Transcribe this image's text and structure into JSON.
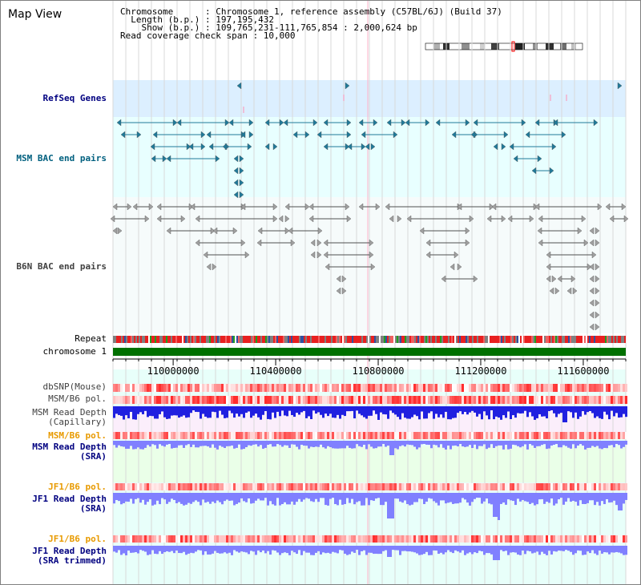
{
  "header": {
    "title": "Map View",
    "info_lines": [
      "Chromosome      : Chromosome 1, reference assembly (C57BL/6J) (Build 37)",
      "  Length (b.p.) : 197,195,432",
      "    Show (b.p.) : 109,765,231-111,765,854 : 2,000,624 bp",
      "Read coverage check span : 10,000"
    ]
  },
  "tracks": {
    "refseq": "RefSeq Genes",
    "msm_bac": "MSM BAC end pairs",
    "b6n_bac": "B6N BAC end pairs",
    "repeat": "Repeat",
    "chromosome": "chromosome 1",
    "dbsnp": "dbSNP(Mouse)",
    "msm_b6_pol": "MSM/B6 pol.",
    "msm_depth_cap_1": "MSM Read Depth",
    "msm_depth_cap_2": "(Capillary)",
    "msm_b6_pol_2": "MSM/B6 pol.",
    "msm_depth_sra_1": "MSM Read Depth",
    "msm_depth_sra_2": "(SRA)",
    "jf1_b6_pol": "JF1/B6 pol.",
    "jf1_depth_sra_1": "JF1 Read Depth",
    "jf1_depth_sra_2": "(SRA)",
    "jf1_b6_pol_2": "JF1/B6 pol.",
    "jf1_depth_trim_1": "JF1 Read Depth",
    "jf1_depth_trim_2": "(SRA trimmed)"
  },
  "ruler": {
    "ticks": [
      {
        "label": "110000000",
        "pos": 110000000
      },
      {
        "label": "110400000",
        "pos": 110400000
      },
      {
        "label": "110800000",
        "pos": 110800000
      },
      {
        "label": "111200000",
        "pos": 111200000
      },
      {
        "label": "111600000",
        "pos": 111600000
      }
    ],
    "start": 109765231,
    "end": 111765854
  },
  "colors": {
    "refseq_bg": "#dcefff",
    "track_bg": "#e8ffff",
    "msm_triangle": "#1f7a9a",
    "b6n_triangle": "#707070",
    "chromosome": "#007000",
    "depth_blue": "#2020e0",
    "depth_light": "#8080ff",
    "pol_red": "#ff3030",
    "cursor": "#ffb0c8"
  },
  "icons": {
    "refseq_marker": "triangle-left-icon",
    "bac_end": "triangle-right-icon"
  }
}
